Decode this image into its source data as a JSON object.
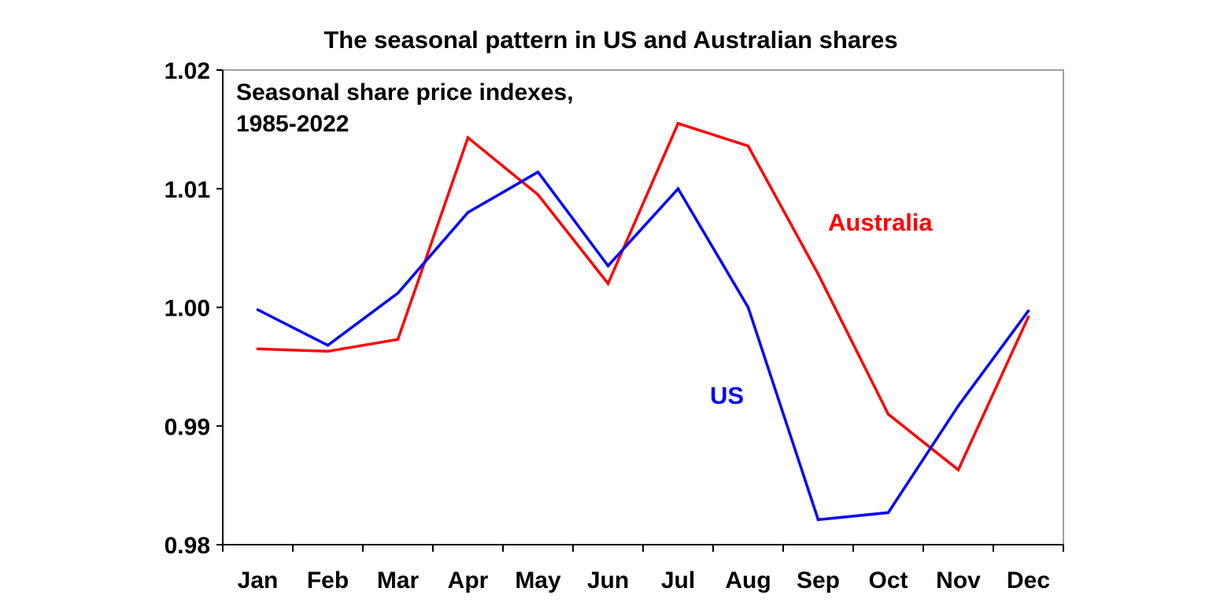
{
  "chart_data": {
    "type": "line",
    "title": "The seasonal pattern in US and Australian shares",
    "annotation_lines": [
      "Seasonal share price indexes,",
      "1985-2022"
    ],
    "xlabel": "",
    "ylabel": "",
    "categories": [
      "Jan",
      "Feb",
      "Mar",
      "Apr",
      "May",
      "Jun",
      "Jul",
      "Aug",
      "Sep",
      "Oct",
      "Nov",
      "Dec"
    ],
    "ylim": [
      0.98,
      1.02
    ],
    "yticks": [
      "0.98",
      "0.99",
      "1.00",
      "1.01",
      "1.02"
    ],
    "grid": false,
    "legend": "inline labels",
    "series": [
      {
        "name": "Australia",
        "color": "#ff0000",
        "values": [
          0.9965,
          0.9963,
          0.9973,
          1.0143,
          1.0095,
          1.002,
          1.0155,
          1.0136,
          1.0028,
          0.991,
          0.9863,
          0.9992
        ]
      },
      {
        "name": "US",
        "color": "#0000ff",
        "values": [
          0.9998,
          0.9968,
          1.0012,
          1.008,
          1.0114,
          1.0035,
          1.01,
          1.0,
          0.9821,
          0.9827,
          0.9917,
          0.9997
        ]
      }
    ]
  }
}
